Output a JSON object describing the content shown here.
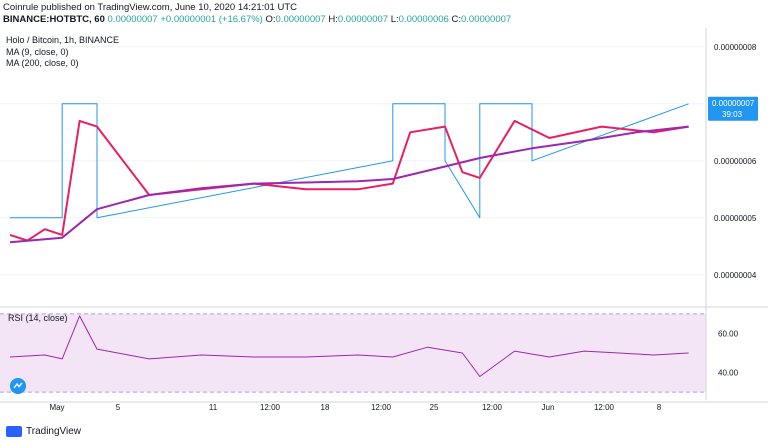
{
  "header": {
    "line1": "Coinrule published on TradingView.com, June 10, 2020 14:21:01 UTC",
    "symbol": "BINANCE:HOTBTC, 60",
    "price": "0.00000007",
    "change": "+0.00000001 (+16.67%)",
    "o_label": "O:",
    "o_value": "0.00000007",
    "h_label": "H:",
    "h_value": "0.00000007",
    "l_label": "L:",
    "l_value": "0.00000006",
    "c_label": "C:",
    "c_value": "0.00000007"
  },
  "legend": {
    "title": "Holo / Bitcoin, 1h, BINANCE",
    "ma1": "MA (9, close, 0)",
    "ma2": "MA (200, close, 0)",
    "rsi": "RSI (14, close)"
  },
  "footer": {
    "brand": "TradingView"
  },
  "price_label": {
    "value": "0.00000007",
    "countdown": "39:03"
  },
  "colors": {
    "price_line": "#2196f3",
    "ma9": "#e91e63",
    "ma200": "#9c27b0",
    "rsi_line": "#9c27b0",
    "rsi_band": "#f3e5f5",
    "label_bg": "#2196f3"
  },
  "chart_data": [
    {
      "type": "line",
      "x_ticks": [
        "May",
        "5",
        "11",
        "12:00",
        "18",
        "12:00",
        "25",
        "12:00",
        "Jun",
        "12:00",
        "8"
      ],
      "y_ticks": [
        "0.00000004",
        "0.00000005",
        "0.00000006",
        "0.00000007",
        "0.00000008"
      ],
      "ylim": [
        3.47e-08,
        8.33e-08
      ],
      "series": [
        {
          "name": "",
          "x": [
            "May 1",
            "May 4",
            "May 4",
            "May 6",
            "May 6",
            "May 23",
            "May 23",
            "May 26",
            "May 26",
            "May 28",
            "May 28",
            "May 31",
            "May 31",
            "Jun 9"
          ],
          "values": [
            5e-08,
            5e-08,
            7e-08,
            7e-08,
            5e-08,
            6e-08,
            7e-08,
            7e-08,
            6e-08,
            5e-08,
            7e-08,
            7e-08,
            6e-08,
            7e-08
          ]
        },
        {
          "name": "MA (9, close, 0)",
          "x": [
            "May 1",
            "May 2",
            "May 3",
            "May 4",
            "May 5",
            "May 6",
            "May 9",
            "May 12",
            "May 15",
            "May 18",
            "May 21",
            "May 23",
            "May 24",
            "May 26",
            "May 27",
            "May 28",
            "May 30",
            "Jun 1",
            "Jun 4",
            "Jun 7",
            "Jun 9"
          ],
          "values": [
            4.7e-08,
            4.6e-08,
            4.8e-08,
            4.7e-08,
            6.7e-08,
            6.6e-08,
            5.4e-08,
            5.5e-08,
            5.6e-08,
            5.5e-08,
            5.5e-08,
            5.6e-08,
            6.5e-08,
            6.6e-08,
            5.8e-08,
            5.7e-08,
            6.7e-08,
            6.4e-08,
            6.6e-08,
            6.5e-08,
            6.6e-08
          ]
        },
        {
          "name": "MA (200, close, 0)",
          "x": [
            "May 1",
            "May 4",
            "May 6",
            "May 9",
            "May 12",
            "May 15",
            "May 18",
            "May 21",
            "May 23",
            "May 26",
            "May 28",
            "May 31",
            "Jun 3",
            "Jun 6",
            "Jun 9"
          ],
          "values": [
            4.57e-08,
            4.65e-08,
            5.15e-08,
            5.4e-08,
            5.52e-08,
            5.6e-08,
            5.62e-08,
            5.64e-08,
            5.68e-08,
            5.9e-08,
            6.05e-08,
            6.22e-08,
            6.35e-08,
            6.5e-08,
            6.6e-08
          ]
        }
      ]
    },
    {
      "type": "line",
      "y_ticks": [
        "40.00",
        "60.00"
      ],
      "ylim": [
        26,
        72
      ],
      "bands": [
        30,
        70
      ],
      "series": [
        {
          "name": "RSI (14, close)",
          "x": [
            "May 1",
            "May 3",
            "May 4",
            "May 5",
            "May 6",
            "May 9",
            "May 12",
            "May 15",
            "May 18",
            "May 21",
            "May 23",
            "May 25",
            "May 27",
            "May 28",
            "May 30",
            "Jun 1",
            "Jun 3",
            "Jun 5",
            "Jun 7",
            "Jun 9"
          ],
          "values": [
            48,
            49,
            47,
            69,
            52,
            47,
            49,
            48,
            48,
            49,
            48,
            53,
            50,
            38,
            51,
            48,
            51,
            50,
            49,
            50
          ]
        }
      ]
    }
  ]
}
